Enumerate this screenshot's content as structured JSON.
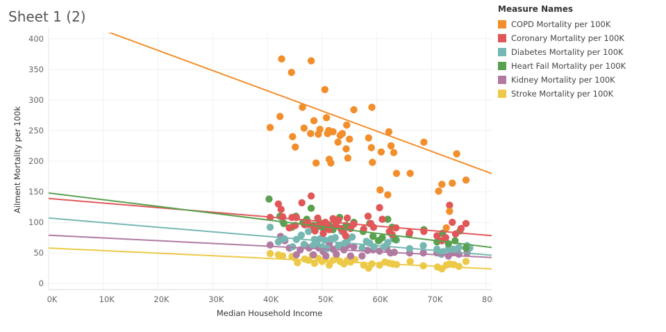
{
  "page": {
    "title": "Sheet 1 (2)"
  },
  "legend": {
    "title": "Measure Names"
  },
  "colors": {
    "COPD Mortality per 100K": "#f28e2b",
    "Coronary Mortality per 100K": "#e15759",
    "Diabetes Mortality per 100K": "#76b7b2",
    "Heart Fail Mortality per 100K": "#59a14f",
    "Kidney Mortality per 100K": "#b07aa1",
    "Stroke Mortality per 100K": "#edc948"
  },
  "chart_data": {
    "type": "scatter",
    "xlabel": "Median Household Income",
    "ylabel": "Ailment Mortality per 100k",
    "xlim": [
      0,
      81000
    ],
    "ylim": [
      -10,
      410
    ],
    "x_ticks": [
      0,
      10000,
      20000,
      30000,
      40000,
      50000,
      60000,
      70000,
      80000
    ],
    "x_tick_labels": [
      "0K",
      "10K",
      "20K",
      "30K",
      "40K",
      "50K",
      "60K",
      "70K",
      "80K"
    ],
    "y_ticks": [
      0,
      50,
      100,
      150,
      200,
      250,
      300,
      350,
      400
    ],
    "y_tick_labels": [
      "0",
      "50",
      "100",
      "150",
      "200",
      "250",
      "300",
      "350",
      "400"
    ],
    "grid": true,
    "legend_position": "top-right",
    "series": [
      {
        "name": "COPD Mortality per 100K",
        "trend": {
          "slope": -0.0033,
          "intercept": 447
        },
        "points": [
          [
            40500,
            255
          ],
          [
            42300,
            273
          ],
          [
            42600,
            367
          ],
          [
            44400,
            345
          ],
          [
            44600,
            240
          ],
          [
            45100,
            223
          ],
          [
            46400,
            288
          ],
          [
            46700,
            254
          ],
          [
            47900,
            245
          ],
          [
            48000,
            364
          ],
          [
            48500,
            266
          ],
          [
            48900,
            197
          ],
          [
            49300,
            244
          ],
          [
            49600,
            252
          ],
          [
            50500,
            317
          ],
          [
            50800,
            271
          ],
          [
            51000,
            245
          ],
          [
            51200,
            250
          ],
          [
            51300,
            203
          ],
          [
            51600,
            197
          ],
          [
            52000,
            248
          ],
          [
            52900,
            231
          ],
          [
            53300,
            242
          ],
          [
            53700,
            245
          ],
          [
            54400,
            220
          ],
          [
            54500,
            259
          ],
          [
            54700,
            205
          ],
          [
            55000,
            236
          ],
          [
            55800,
            284
          ],
          [
            58500,
            238
          ],
          [
            59000,
            222
          ],
          [
            59100,
            288
          ],
          [
            59200,
            198
          ],
          [
            60600,
            153
          ],
          [
            60800,
            215
          ],
          [
            62000,
            145
          ],
          [
            62200,
            248
          ],
          [
            62600,
            225
          ],
          [
            63100,
            214
          ],
          [
            63600,
            180
          ],
          [
            66100,
            180
          ],
          [
            68600,
            231
          ],
          [
            71300,
            151
          ],
          [
            71900,
            162
          ],
          [
            72700,
            91
          ],
          [
            73300,
            118
          ],
          [
            73800,
            164
          ],
          [
            74600,
            212
          ],
          [
            76300,
            169
          ]
        ]
      },
      {
        "name": "Coronary Mortality per 100K",
        "trend": {
          "slope": -0.00075,
          "intercept": 139
        },
        "points": [
          [
            40500,
            108
          ],
          [
            42000,
            130
          ],
          [
            42500,
            121
          ],
          [
            42800,
            109
          ],
          [
            44000,
            91
          ],
          [
            44500,
            108
          ],
          [
            45100,
            95
          ],
          [
            45300,
            108
          ],
          [
            46300,
            132
          ],
          [
            46800,
            96
          ],
          [
            47500,
            97
          ],
          [
            48000,
            143
          ],
          [
            48400,
            93
          ],
          [
            48700,
            86
          ],
          [
            49200,
            107
          ],
          [
            49600,
            96
          ],
          [
            50200,
            82
          ],
          [
            50600,
            100
          ],
          [
            51000,
            93
          ],
          [
            51300,
            88
          ],
          [
            52000,
            106
          ],
          [
            52500,
            95
          ],
          [
            53000,
            104
          ],
          [
            53400,
            90
          ],
          [
            53900,
            85
          ],
          [
            54300,
            78
          ],
          [
            54600,
            107
          ],
          [
            55200,
            90
          ],
          [
            55800,
            97
          ],
          [
            57600,
            89
          ],
          [
            58400,
            110
          ],
          [
            58900,
            98
          ],
          [
            59400,
            92
          ],
          [
            60500,
            124
          ],
          [
            61000,
            105
          ],
          [
            62300,
            85
          ],
          [
            62800,
            80
          ],
          [
            63500,
            91
          ],
          [
            66000,
            83
          ],
          [
            68600,
            85
          ],
          [
            71000,
            78
          ],
          [
            71900,
            70
          ],
          [
            72600,
            75
          ],
          [
            73300,
            128
          ],
          [
            73800,
            100
          ],
          [
            74400,
            81
          ],
          [
            75400,
            90
          ],
          [
            76300,
            98
          ]
        ]
      },
      {
        "name": "Diabetes Mortality per 100K",
        "trend": {
          "slope": -0.00075,
          "intercept": 107
        },
        "points": [
          [
            40500,
            92
          ],
          [
            42000,
            68
          ],
          [
            42800,
            101
          ],
          [
            43100,
            73
          ],
          [
            44600,
            60
          ],
          [
            45300,
            72
          ],
          [
            46200,
            79
          ],
          [
            46700,
            64
          ],
          [
            47500,
            85
          ],
          [
            48300,
            62
          ],
          [
            48600,
            72
          ],
          [
            49000,
            66
          ],
          [
            49600,
            73
          ],
          [
            50000,
            60
          ],
          [
            50500,
            71
          ],
          [
            50900,
            57
          ],
          [
            51600,
            73
          ],
          [
            52400,
            75
          ],
          [
            53000,
            62
          ],
          [
            53600,
            85
          ],
          [
            54100,
            66
          ],
          [
            54700,
            72
          ],
          [
            55500,
            76
          ],
          [
            57300,
            58
          ],
          [
            58100,
            69
          ],
          [
            58700,
            66
          ],
          [
            59500,
            60
          ],
          [
            60500,
            71
          ],
          [
            61300,
            60
          ],
          [
            62000,
            67
          ],
          [
            63000,
            73
          ],
          [
            63600,
            71
          ],
          [
            66000,
            57
          ],
          [
            68500,
            62
          ],
          [
            71000,
            56
          ],
          [
            71600,
            49
          ],
          [
            72100,
            52
          ],
          [
            73100,
            57
          ],
          [
            74000,
            56
          ],
          [
            75000,
            59
          ],
          [
            76500,
            62
          ],
          [
            77000,
            58
          ]
        ]
      },
      {
        "name": "Heart Fail Mortality per 100K",
        "trend": {
          "slope": -0.0011,
          "intercept": 148
        },
        "points": [
          [
            40300,
            138
          ],
          [
            42300,
            110
          ],
          [
            43000,
            98
          ],
          [
            44500,
            92
          ],
          [
            45200,
            110
          ],
          [
            46500,
            100
          ],
          [
            47200,
            105
          ],
          [
            48000,
            123
          ],
          [
            48400,
            95
          ],
          [
            49000,
            92
          ],
          [
            49500,
            100
          ],
          [
            50000,
            92
          ],
          [
            50600,
            90
          ],
          [
            51300,
            95
          ],
          [
            52000,
            88
          ],
          [
            52600,
            100
          ],
          [
            53200,
            108
          ],
          [
            53800,
            90
          ],
          [
            54400,
            95
          ],
          [
            55000,
            92
          ],
          [
            55800,
            100
          ],
          [
            57500,
            85
          ],
          [
            58700,
            98
          ],
          [
            59300,
            77
          ],
          [
            60300,
            70
          ],
          [
            61000,
            75
          ],
          [
            62000,
            105
          ],
          [
            62800,
            92
          ],
          [
            63400,
            72
          ],
          [
            65900,
            80
          ],
          [
            68600,
            88
          ],
          [
            71000,
            68
          ],
          [
            72000,
            82
          ],
          [
            73100,
            65
          ],
          [
            74300,
            70
          ],
          [
            75200,
            86
          ],
          [
            76300,
            58
          ]
        ]
      },
      {
        "name": "Kidney Mortality per 100K",
        "trend": {
          "slope": -0.00045,
          "intercept": 79
        },
        "points": [
          [
            40500,
            63
          ],
          [
            42400,
            77
          ],
          [
            43200,
            70
          ],
          [
            44000,
            58
          ],
          [
            45300,
            47
          ],
          [
            46000,
            55
          ],
          [
            46900,
            62
          ],
          [
            47600,
            58
          ],
          [
            48400,
            47
          ],
          [
            48900,
            64
          ],
          [
            49400,
            58
          ],
          [
            50200,
            52
          ],
          [
            50700,
            45
          ],
          [
            51300,
            65
          ],
          [
            52000,
            56
          ],
          [
            52600,
            48
          ],
          [
            53300,
            62
          ],
          [
            54000,
            55
          ],
          [
            54600,
            62
          ],
          [
            55200,
            45
          ],
          [
            55800,
            60
          ],
          [
            57300,
            45
          ],
          [
            58300,
            54
          ],
          [
            59300,
            55
          ],
          [
            60500,
            53
          ],
          [
            61800,
            58
          ],
          [
            62500,
            50
          ],
          [
            63200,
            51
          ],
          [
            66000,
            50
          ],
          [
            68500,
            50
          ],
          [
            71000,
            50
          ],
          [
            71800,
            48
          ],
          [
            73100,
            45
          ],
          [
            74000,
            52
          ],
          [
            75000,
            48
          ],
          [
            76500,
            50
          ]
        ]
      },
      {
        "name": "Stroke Mortality per 100K",
        "trend": {
          "slope": -0.00042,
          "intercept": 58
        },
        "points": [
          [
            40500,
            49
          ],
          [
            42000,
            47
          ],
          [
            42800,
            45
          ],
          [
            44500,
            44
          ],
          [
            45000,
            42
          ],
          [
            45500,
            34
          ],
          [
            46800,
            40
          ],
          [
            47500,
            38
          ],
          [
            48200,
            46
          ],
          [
            48600,
            33
          ],
          [
            49300,
            41
          ],
          [
            50000,
            36
          ],
          [
            50600,
            40
          ],
          [
            51300,
            30
          ],
          [
            52000,
            38
          ],
          [
            52600,
            42
          ],
          [
            53300,
            36
          ],
          [
            54000,
            32
          ],
          [
            54600,
            38
          ],
          [
            55200,
            35
          ],
          [
            56000,
            39
          ],
          [
            57600,
            30
          ],
          [
            58500,
            25
          ],
          [
            59100,
            32
          ],
          [
            60500,
            30
          ],
          [
            61500,
            35
          ],
          [
            62300,
            33
          ],
          [
            62900,
            32
          ],
          [
            63600,
            31
          ],
          [
            66100,
            36
          ],
          [
            68500,
            29
          ],
          [
            71100,
            27
          ],
          [
            71900,
            24
          ],
          [
            72700,
            30
          ],
          [
            73300,
            32
          ],
          [
            74100,
            31
          ],
          [
            75000,
            28
          ],
          [
            76300,
            36
          ]
        ]
      }
    ]
  }
}
